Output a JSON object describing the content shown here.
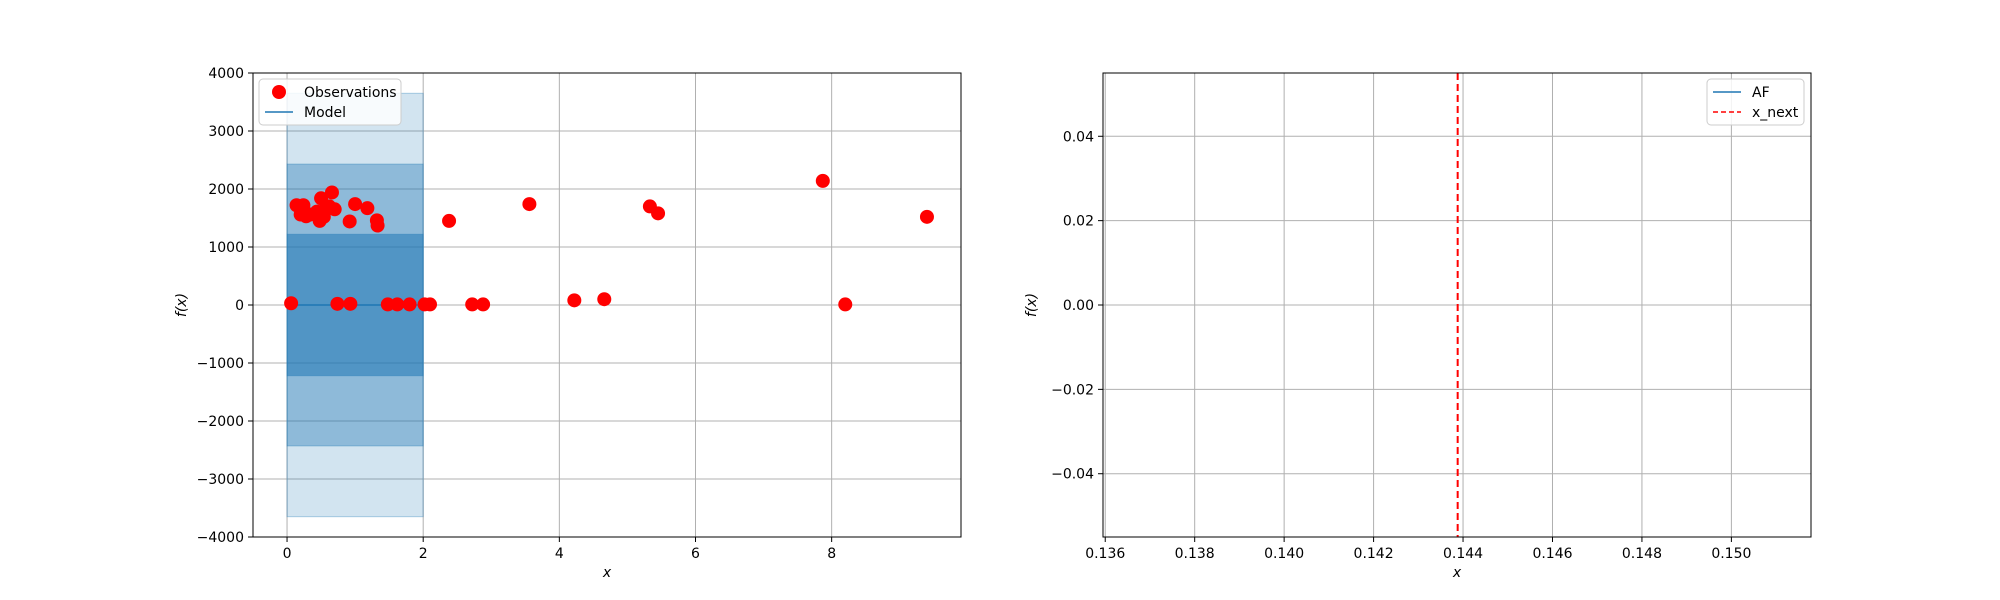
{
  "chart_data": [
    {
      "type": "scatter",
      "xlabel": "x",
      "ylabel": "f(x)",
      "xlim": [
        -0.5,
        9.9
      ],
      "ylim": [
        -4000,
        4000
      ],
      "xticks": [
        0,
        2,
        4,
        6,
        8
      ],
      "yticks": [
        -4000,
        -3000,
        -2000,
        -1000,
        0,
        1000,
        2000,
        3000,
        4000
      ],
      "xtick_labels": [
        "0",
        "2",
        "4",
        "6",
        "8"
      ],
      "ytick_labels": [
        "−4000",
        "−3000",
        "−2000",
        "−1000",
        "0",
        "1000",
        "2000",
        "3000",
        "4000"
      ],
      "grid": true,
      "legend_position": "top-left",
      "legend": [
        "Observations",
        "Model"
      ],
      "colors": {
        "observations": "#ff0000",
        "model": "#1f77b4"
      },
      "model": {
        "x_range": [
          0,
          2
        ],
        "mean": 0,
        "bands": [
          {
            "lower": -3650,
            "upper": 3650
          },
          {
            "lower": -2430,
            "upper": 2430
          },
          {
            "lower": -1220,
            "upper": 1220
          }
        ]
      },
      "series": [
        {
          "name": "Observations",
          "points": [
            [
              0.06,
              30
            ],
            [
              0.14,
              1720
            ],
            [
              0.2,
              1560
            ],
            [
              0.24,
              1720
            ],
            [
              0.28,
              1530
            ],
            [
              0.34,
              1560
            ],
            [
              0.4,
              1570
            ],
            [
              0.44,
              1610
            ],
            [
              0.48,
              1450
            ],
            [
              0.5,
              1840
            ],
            [
              0.54,
              1520
            ],
            [
              0.58,
              1680
            ],
            [
              0.62,
              1700
            ],
            [
              0.66,
              1940
            ],
            [
              0.7,
              1650
            ],
            [
              0.74,
              20
            ],
            [
              0.92,
              1440
            ],
            [
              0.93,
              20
            ],
            [
              1.0,
              1740
            ],
            [
              1.18,
              1670
            ],
            [
              1.32,
              1460
            ],
            [
              1.33,
              1370
            ],
            [
              1.48,
              10
            ],
            [
              1.62,
              10
            ],
            [
              1.8,
              10
            ],
            [
              2.02,
              10
            ],
            [
              2.1,
              10
            ],
            [
              2.38,
              1450
            ],
            [
              2.72,
              10
            ],
            [
              2.88,
              10
            ],
            [
              3.56,
              1740
            ],
            [
              4.22,
              80
            ],
            [
              4.66,
              100
            ],
            [
              5.33,
              1700
            ],
            [
              5.45,
              1580
            ],
            [
              7.87,
              2140
            ],
            [
              8.2,
              10
            ],
            [
              9.4,
              1520
            ]
          ]
        }
      ]
    },
    {
      "type": "line",
      "xlabel": "x",
      "ylabel": "f(x)",
      "xlim": [
        0.13595,
        0.15178
      ],
      "ylim": [
        -0.055,
        0.055
      ],
      "xticks": [
        0.136,
        0.138,
        0.14,
        0.142,
        0.144,
        0.146,
        0.148,
        0.15
      ],
      "yticks": [
        -0.04,
        -0.02,
        0.0,
        0.02,
        0.04
      ],
      "xtick_labels": [
        "0.136",
        "0.138",
        "0.140",
        "0.142",
        "0.144",
        "0.146",
        "0.148",
        "0.150"
      ],
      "ytick_labels": [
        "−0.04",
        "−0.02",
        "0.00",
        "0.02",
        "0.04"
      ],
      "grid": true,
      "legend_position": "top-right",
      "legend": [
        "AF",
        "x_next"
      ],
      "colors": {
        "af": "#1f77b4",
        "x_next": "#ff0000"
      },
      "series": [
        {
          "name": "AF",
          "points": []
        },
        {
          "name": "x_next",
          "x": 0.14388
        }
      ]
    }
  ]
}
